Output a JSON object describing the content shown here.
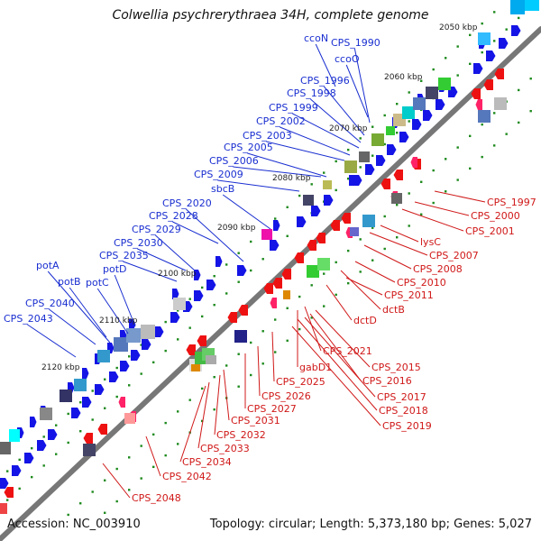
{
  "title": "Colwellia psychrerythraea 34H, complete genome",
  "footer": {
    "accession": "Accession: NC_003910",
    "summary": "Topology: circular; Length: 5,373,180 bp; Genes: 5,027"
  },
  "colors": {
    "forward": "#1414e6",
    "reverse": "#ee1111",
    "backbone": "#8a8a8a",
    "ticks": "#1e8a1e"
  },
  "kbp_ticks": [
    "2050 kbp",
    "2060 kbp",
    "2070 kbp",
    "2080 kbp",
    "2090 kbp",
    "2100 kbp",
    "2110 kbp",
    "2120 kbp"
  ],
  "forward_labels": [
    "ccoN",
    "CPS_1990",
    "ccoO",
    "CPS_1996",
    "CPS_1998",
    "CPS_1999",
    "CPS_2002",
    "CPS_2003",
    "CPS_2005",
    "CPS_2006",
    "CPS_2009",
    "sbcB",
    "CPS_2020",
    "CPS_2028",
    "CPS_2029",
    "CPS_2030",
    "CPS_2035",
    "potA",
    "potB",
    "potC",
    "potD",
    "CPS_2040",
    "CPS_2043"
  ],
  "reverse_labels": [
    "CPS_1997",
    "CPS_2000",
    "CPS_2001",
    "lysC",
    "CPS_2007",
    "CPS_2008",
    "CPS_2010",
    "dctB",
    "CPS_2011",
    "dctD",
    "CPS_2021",
    "gabD1",
    "CPS_2015",
    "CPS_2016",
    "CPS_2017",
    "CPS_2018",
    "CPS_2019",
    "CPS_2025",
    "CPS_2026",
    "CPS_2027",
    "CPS_2031",
    "CPS_2032",
    "CPS_2033",
    "CPS_2034",
    "CPS_2042",
    "CPS_2048"
  ]
}
